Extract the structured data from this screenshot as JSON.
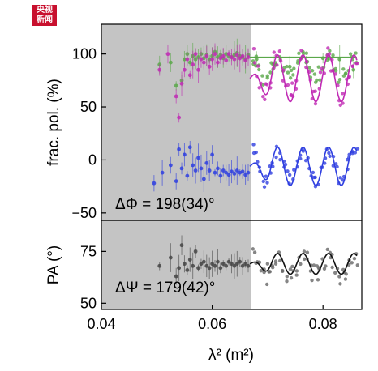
{
  "logo": {
    "line1": "央视",
    "line2": "新闻"
  },
  "chart_data": [
    {
      "type": "scatter",
      "panel": "top",
      "ylabel": "frac. pol. (%)",
      "xlim": [
        0.04,
        0.087
      ],
      "ylim": [
        -57,
        128
      ],
      "yticks": [
        100,
        50,
        0,
        -50
      ],
      "annotation": "ΔΦ = 198(34)°",
      "shaded_xrange": [
        0.04,
        0.067
      ],
      "grid": false,
      "series": [
        {
          "color": "#5aa84a",
          "x": [
            0.0505,
            0.0525,
            0.0535,
            0.0545,
            0.055,
            0.0555,
            0.056,
            0.0565,
            0.057,
            0.0575,
            0.058,
            0.0585,
            0.059,
            0.0595,
            0.06,
            0.0605,
            0.061,
            0.0615,
            0.062,
            0.0625,
            0.063,
            0.0635,
            0.064,
            0.0645,
            0.065,
            0.0655,
            0.066,
            0.0665,
            0.068,
            0.071,
            0.074,
            0.077,
            0.08,
            0.083,
            0.0855
          ],
          "y": [
            90,
            92,
            70,
            75,
            95,
            100,
            92,
            98,
            95,
            97,
            100,
            96,
            99,
            95,
            98,
            102,
            97,
            99,
            96,
            100,
            98,
            97,
            99,
            101,
            98,
            97,
            95,
            99,
            95,
            90,
            88,
            92,
            96,
            95,
            85
          ]
        },
        {
          "color": "#c02ab4",
          "x": [
            0.0505,
            0.052,
            0.0535,
            0.054,
            0.0545,
            0.055,
            0.0555,
            0.056,
            0.0565,
            0.057,
            0.0575,
            0.058,
            0.0585,
            0.059,
            0.0595,
            0.06,
            0.0605,
            0.061,
            0.0615,
            0.062,
            0.0625,
            0.063,
            0.0635,
            0.064,
            0.0645,
            0.065,
            0.0655,
            0.066,
            0.0665
          ],
          "y": [
            85,
            100,
            60,
            40,
            72,
            85,
            95,
            80,
            90,
            100,
            85,
            95,
            92,
            98,
            88,
            95,
            100,
            92,
            96,
            98,
            94,
            100,
            97,
            95,
            99,
            96,
            98,
            94,
            97
          ],
          "fit": "model"
        },
        {
          "color": "#2f3fe0",
          "x": [
            0.0495,
            0.051,
            0.0525,
            0.0535,
            0.054,
            0.0545,
            0.055,
            0.0555,
            0.056,
            0.0565,
            0.057,
            0.0575,
            0.058,
            0.0585,
            0.059,
            0.0595,
            0.06,
            0.0605,
            0.061,
            0.0615,
            0.062,
            0.0625,
            0.063,
            0.0635,
            0.064,
            0.0645,
            0.065,
            0.0655,
            0.066,
            0.0665
          ],
          "y": [
            -22,
            -12,
            -5,
            -20,
            10,
            -8,
            5,
            -15,
            12,
            -5,
            -10,
            2,
            -8,
            -18,
            -3,
            -10,
            5,
            -12,
            -8,
            -15,
            -10,
            -12,
            -14,
            -11,
            -13,
            -10,
            -12,
            -11,
            -14,
            -12
          ],
          "fit": "model"
        }
      ]
    },
    {
      "type": "scatter",
      "panel": "bottom",
      "ylabel": "PA (°)",
      "xlabel": "λ² (m²)",
      "xlim": [
        0.04,
        0.087
      ],
      "ylim": [
        47,
        90
      ],
      "yticks": [
        75,
        50
      ],
      "xticks": [
        0.04,
        0.06,
        0.08
      ],
      "annotation": "ΔΨ = 179(42)°",
      "shaded_xrange": [
        0.04,
        0.067
      ],
      "series": [
        {
          "color": "#444444",
          "x": [
            0.0505,
            0.0525,
            0.0535,
            0.054,
            0.0545,
            0.055,
            0.0555,
            0.056,
            0.0565,
            0.057,
            0.0575,
            0.058,
            0.0585,
            0.059,
            0.0595,
            0.06,
            0.0605,
            0.061,
            0.0615,
            0.062,
            0.0625,
            0.063,
            0.0635,
            0.064,
            0.0645,
            0.065,
            0.0655,
            0.066,
            0.0665
          ],
          "y": [
            68,
            72,
            63,
            67,
            78,
            69,
            66,
            71,
            68,
            75,
            67,
            69,
            70,
            68,
            67,
            69,
            68,
            70,
            67,
            69,
            68,
            70,
            69,
            68,
            69,
            70,
            68,
            69,
            68
          ],
          "fit": "model"
        }
      ]
    }
  ],
  "xticklabels": [
    "0.04",
    "0.06",
    "0.08"
  ],
  "top_yticklabels": [
    "100",
    "50",
    "0",
    "−50"
  ],
  "bottom_yticklabels": [
    "75",
    "50"
  ]
}
